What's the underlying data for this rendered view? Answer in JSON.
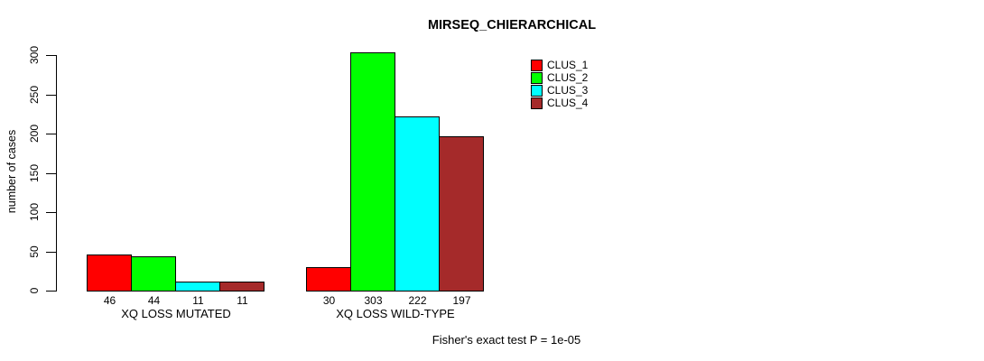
{
  "chart_data": {
    "type": "bar",
    "title": "MIRSEQ_CHIERARCHICAL",
    "ylabel": "number of cases",
    "xlabel": "",
    "categories": [
      "XQ LOSS MUTATED",
      "XQ LOSS WILD-TYPE"
    ],
    "series": [
      {
        "name": "CLUS_1",
        "color": "#FF0000",
        "values": [
          46,
          30
        ]
      },
      {
        "name": "CLUS_2",
        "color": "#00FF00",
        "values": [
          44,
          303
        ]
      },
      {
        "name": "CLUS_3",
        "color": "#00FFFF",
        "values": [
          11,
          222
        ]
      },
      {
        "name": "CLUS_4",
        "color": "#A52A2A",
        "values": [
          11,
          197
        ]
      }
    ],
    "bar_value_labels": [
      [
        "46",
        "44",
        "11",
        "11"
      ],
      [
        "30",
        "303",
        "222",
        "197"
      ]
    ],
    "yticks": [
      "0",
      "50",
      "100",
      "150",
      "200",
      "250",
      "300"
    ],
    "ylim": [
      0,
      300
    ],
    "grid": false,
    "legend_position": "top-right",
    "annotation": "Fisher's exact test P = 1e-05"
  }
}
